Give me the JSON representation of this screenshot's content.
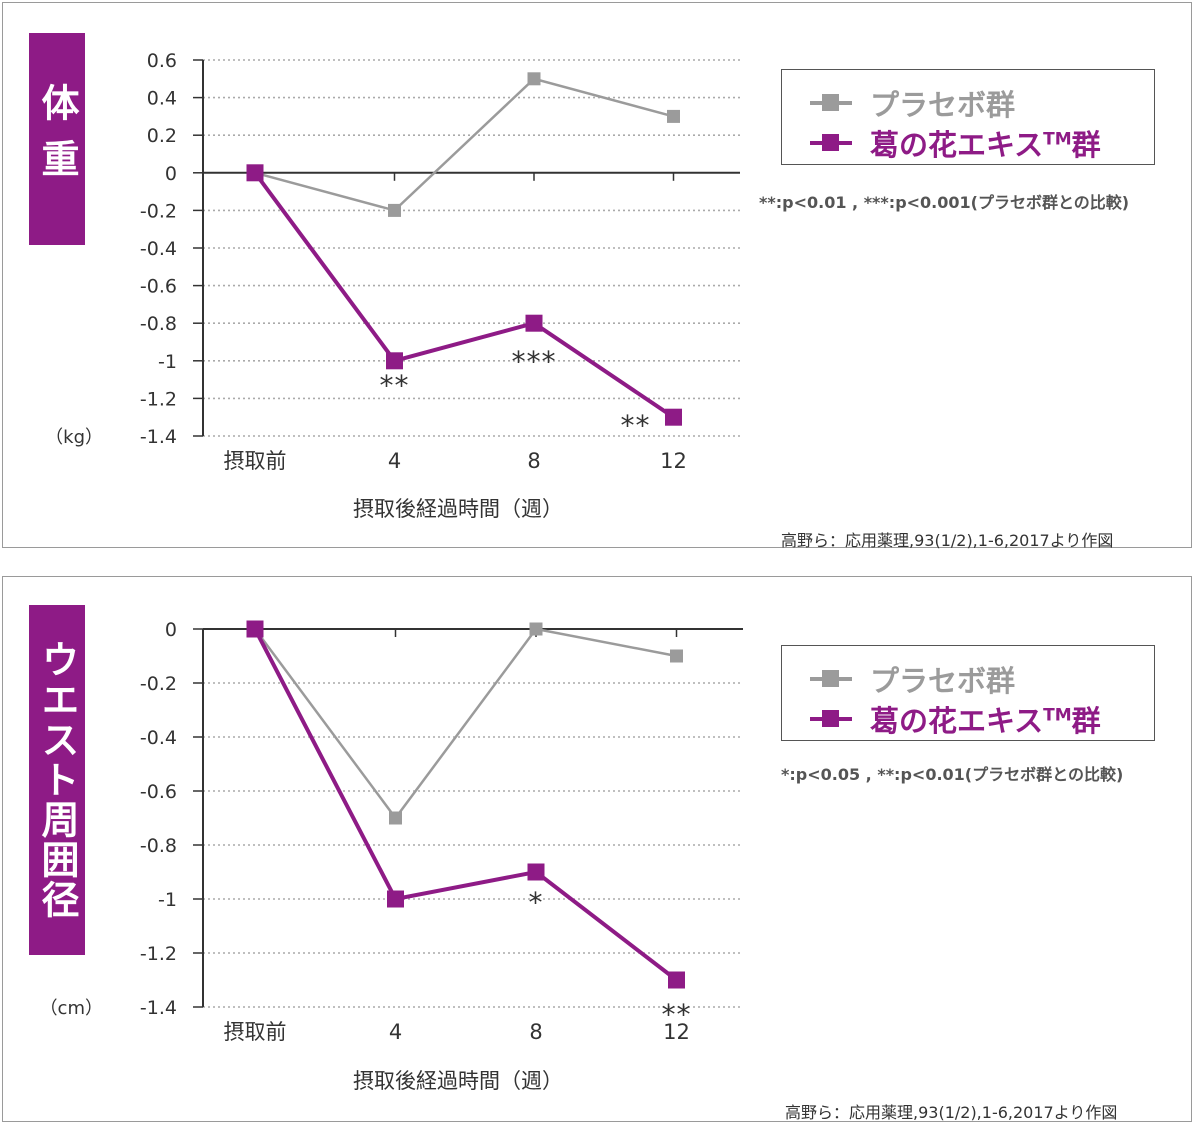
{
  "colors": {
    "placebo": "#9b9b9b",
    "kudzu": "#8e1b86",
    "grid": "#aaaaaa",
    "axis": "#333333",
    "label_bg": "#8e1b86"
  },
  "legend": {
    "placebo": "プラセボ群",
    "kudzu_prefix": "葛の花エキス",
    "kudzu_tm": "TM",
    "kudzu_suffix": "群"
  },
  "chart_data": [
    {
      "type": "line",
      "title": "体重",
      "xlabel": "摂取後経過時間（週）",
      "ylabel": "",
      "unit": "（kg）",
      "categories": [
        "摂取前",
        "4",
        "8",
        "12"
      ],
      "ylim": [
        -1.4,
        0.6
      ],
      "yticks": [
        "0.6",
        "0.4",
        "0.2",
        "0",
        "-0.2",
        "-0.4",
        "-0.6",
        "-0.8",
        "-1",
        "-1.2",
        "-1.4"
      ],
      "series": [
        {
          "name": "プラセボ群",
          "values": [
            0,
            -0.2,
            0.5,
            0.3
          ]
        },
        {
          "name": "葛の花エキスTM群",
          "values": [
            0,
            -1.0,
            -0.8,
            -1.3
          ]
        }
      ],
      "annotations": [
        "",
        "**",
        "***",
        "**"
      ],
      "significance_note": "**:p<0.01 , ***:p<0.001(プラセボ群との比較)",
      "source": "高野ら：応用薬理,93(1/2),1-6,2017より作図",
      "grid": true
    },
    {
      "type": "line",
      "title": "ウエスト周囲径",
      "xlabel": "摂取後経過時間（週）",
      "ylabel": "",
      "unit": "（cm）",
      "categories": [
        "摂取前",
        "4",
        "8",
        "12"
      ],
      "ylim": [
        -1.4,
        0
      ],
      "yticks": [
        "0",
        "-0.2",
        "-0.4",
        "-0.6",
        "-0.8",
        "-1",
        "-1.2",
        "-1.4"
      ],
      "series": [
        {
          "name": "プラセボ群",
          "values": [
            0,
            -0.7,
            0,
            -0.1
          ]
        },
        {
          "name": "葛の花エキスTM群",
          "values": [
            0,
            -1.0,
            -0.9,
            -1.3
          ]
        }
      ],
      "annotations": [
        "",
        "",
        "*",
        "**"
      ],
      "significance_note": "*:p<0.05 , **:p<0.01(プラセボ群との比較)",
      "source": "高野ら：応用薬理,93(1/2),1-6,2017より作図",
      "grid": true
    }
  ]
}
